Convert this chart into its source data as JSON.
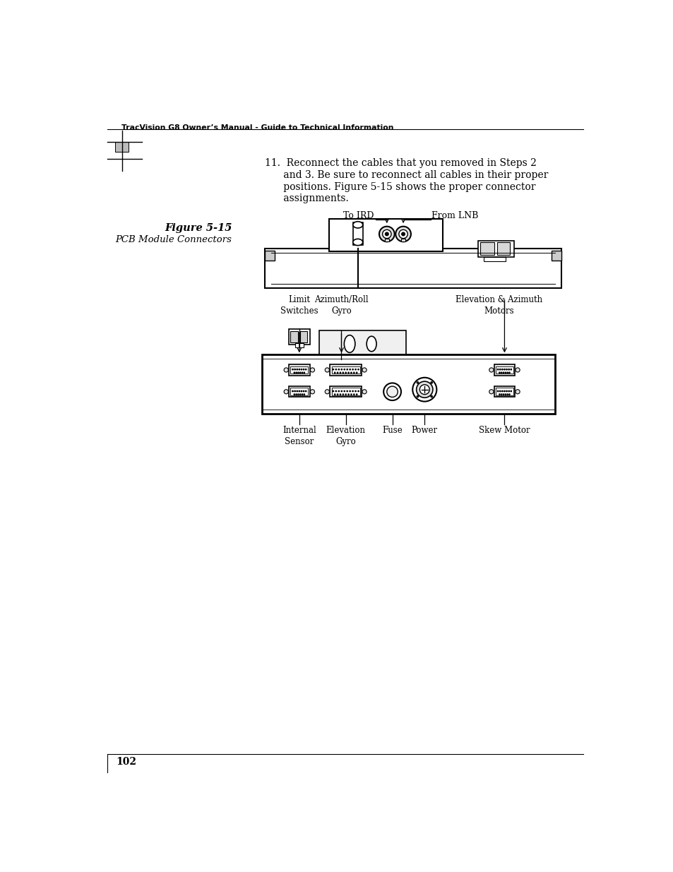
{
  "bg_color": "#ffffff",
  "header_text": "TracVision G8 Owner’s Manual - Guide to Technical Information",
  "page_number": "102",
  "figure_label": "Figure 5-15",
  "figure_caption": "PCB Module Connectors",
  "step_text_line1": "11.  Reconnect the cables that you removed in Steps 2",
  "step_text_line2": "      and 3. Be sure to reconnect all cables in their proper",
  "step_text_line3": "      positions. Figure 5-15 shows the proper connector",
  "step_text_line4": "      assignments."
}
